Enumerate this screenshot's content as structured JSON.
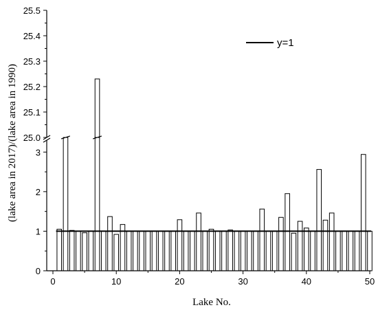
{
  "chart_data": {
    "type": "bar",
    "xlabel": "Lake No.",
    "ylabel": "(lake area in 2017)/(lake area in 1990)",
    "xlim": [
      0,
      50
    ],
    "x_ticks": [
      0,
      10,
      20,
      30,
      40,
      50
    ],
    "x_tick_labels": [
      "0",
      "10",
      "20",
      "30",
      "40",
      "50"
    ],
    "ylim": [
      0,
      25.5
    ],
    "y_axis_break": [
      3.3,
      25.0
    ],
    "y_ticks_lower": [
      0,
      1,
      2,
      3
    ],
    "y_tick_labels_lower": [
      "0",
      "1",
      "2",
      "3"
    ],
    "y_ticks_upper": [
      25.0,
      25.1,
      25.2,
      25.3,
      25.4,
      25.5
    ],
    "y_tick_labels_upper": [
      "25.0",
      "25.1",
      "25.2",
      "25.3",
      "25.4",
      "25.5"
    ],
    "grid": false,
    "legend": {
      "position": "top-right",
      "label": "y=1"
    },
    "reference_line": {
      "y": 1,
      "name": "y=1"
    },
    "x": [
      1,
      2,
      3,
      4,
      5,
      6,
      7,
      8,
      9,
      10,
      11,
      12,
      13,
      14,
      15,
      16,
      17,
      18,
      19,
      20,
      21,
      22,
      23,
      24,
      25,
      26,
      27,
      28,
      29,
      30,
      31,
      32,
      33,
      34,
      35,
      36,
      37,
      38,
      39,
      40,
      41,
      42,
      43,
      44,
      45,
      46,
      47,
      48,
      49,
      50
    ],
    "values": [
      1.05,
      3.37,
      1.02,
      1.0,
      0.96,
      1.0,
      25.23,
      1.0,
      1.37,
      0.92,
      1.17,
      1.0,
      1.0,
      1.0,
      1.0,
      1.0,
      1.0,
      1.0,
      1.0,
      1.29,
      1.0,
      1.0,
      1.46,
      1.0,
      1.05,
      1.0,
      1.0,
      1.03,
      1.0,
      1.0,
      1.0,
      1.0,
      1.56,
      1.0,
      1.0,
      1.35,
      1.95,
      0.95,
      1.25,
      1.08,
      1.0,
      2.56,
      1.28,
      1.46,
      1.0,
      1.0,
      1.0,
      1.0,
      2.94,
      1.0
    ],
    "bar_color": "#ffffff",
    "stroke_color": "#000000"
  }
}
